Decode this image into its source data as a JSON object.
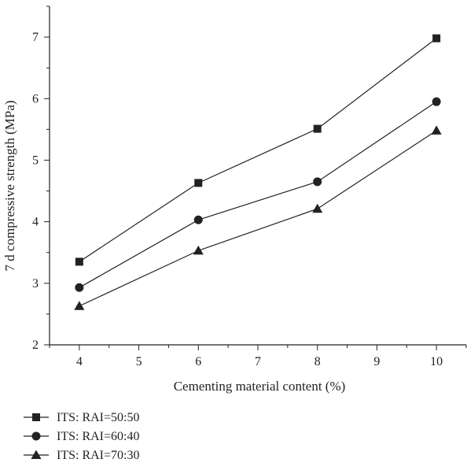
{
  "chart_data": {
    "type": "line",
    "title": "",
    "xlabel": "Cementing material content (%)",
    "ylabel": "7 d compressive strength (MPa)",
    "xlim": [
      3.5,
      10.5
    ],
    "ylim": [
      2,
      7.5
    ],
    "xticks": [
      4,
      5,
      6,
      7,
      8,
      9,
      10
    ],
    "yticks": [
      2,
      3,
      4,
      5,
      6,
      7
    ],
    "grid": false,
    "legend_position": "bottom-left",
    "series": [
      {
        "name": "ITS: RAI=50:50",
        "marker": "square",
        "x": [
          4,
          6,
          8,
          10
        ],
        "y": [
          3.35,
          4.63,
          5.51,
          6.98
        ]
      },
      {
        "name": "ITS: RAI=60:40",
        "marker": "circle",
        "x": [
          4,
          6,
          8,
          10
        ],
        "y": [
          2.93,
          4.03,
          4.65,
          5.95
        ]
      },
      {
        "name": "ITS: RAI=70:30",
        "marker": "triangle",
        "x": [
          4,
          6,
          8,
          10
        ],
        "y": [
          2.63,
          3.53,
          4.21,
          5.48
        ]
      }
    ]
  }
}
